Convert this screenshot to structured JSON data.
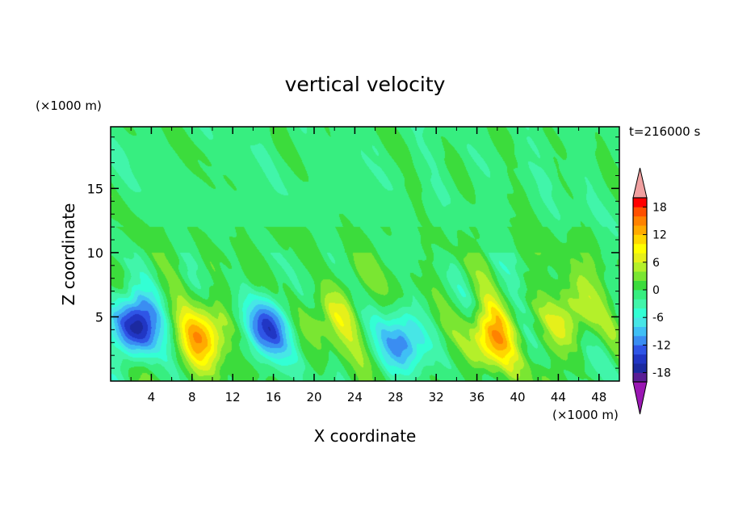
{
  "chart_data": {
    "type": "heatmap",
    "title": "vertical velocity",
    "time_label": "t=216000 s",
    "xlabel": "X coordinate",
    "ylabel": "Z coordinate",
    "x_unit": "(×1000 m)",
    "y_unit": "(×1000 m)",
    "xlim": [
      0,
      50
    ],
    "ylim": [
      0,
      19.8
    ],
    "x_ticks": [
      4,
      8,
      12,
      16,
      20,
      24,
      28,
      32,
      36,
      40,
      44,
      48
    ],
    "y_ticks": [
      5,
      10,
      15
    ],
    "colorbar": {
      "tick_labels": [
        "18",
        "12",
        "6",
        "0",
        "-6",
        "-12",
        "-18"
      ],
      "tick_values": [
        18,
        12,
        6,
        0,
        -6,
        -12,
        -18
      ],
      "levels": [
        -20,
        -18,
        -16,
        -14,
        -12,
        -10,
        -8,
        -6,
        -4,
        -2,
        0,
        2,
        4,
        6,
        8,
        10,
        12,
        14,
        16,
        18,
        20
      ],
      "colors": [
        "#5a1e96",
        "#1c2aa0",
        "#2136c4",
        "#2f55e6",
        "#3a8df2",
        "#3fbff5",
        "#47e6e6",
        "#33ffd4",
        "#41f5aa",
        "#37ee80",
        "#3cdc3c",
        "#7ae632",
        "#b4f02a",
        "#e6f01a",
        "#ffff00",
        "#ffd700",
        "#ffaa00",
        "#ff8200",
        "#ff5000",
        "#ff0000"
      ],
      "under_color": "#9a17b3",
      "over_color": "#f0a0a0"
    },
    "features": [
      {
        "x": 2.5,
        "z": 4.3,
        "w": -17
      },
      {
        "x": 9.0,
        "z": 3.4,
        "w": 12
      },
      {
        "x": 15.5,
        "z": 4.2,
        "w": -12
      },
      {
        "x": 22.7,
        "z": 5.5,
        "w": 6
      },
      {
        "x": 28.7,
        "z": 3.0,
        "w": -10
      },
      {
        "x": 37.5,
        "z": 3.4,
        "w": 12
      },
      {
        "x": 45.0,
        "z": 5.0,
        "w": 8
      }
    ]
  }
}
